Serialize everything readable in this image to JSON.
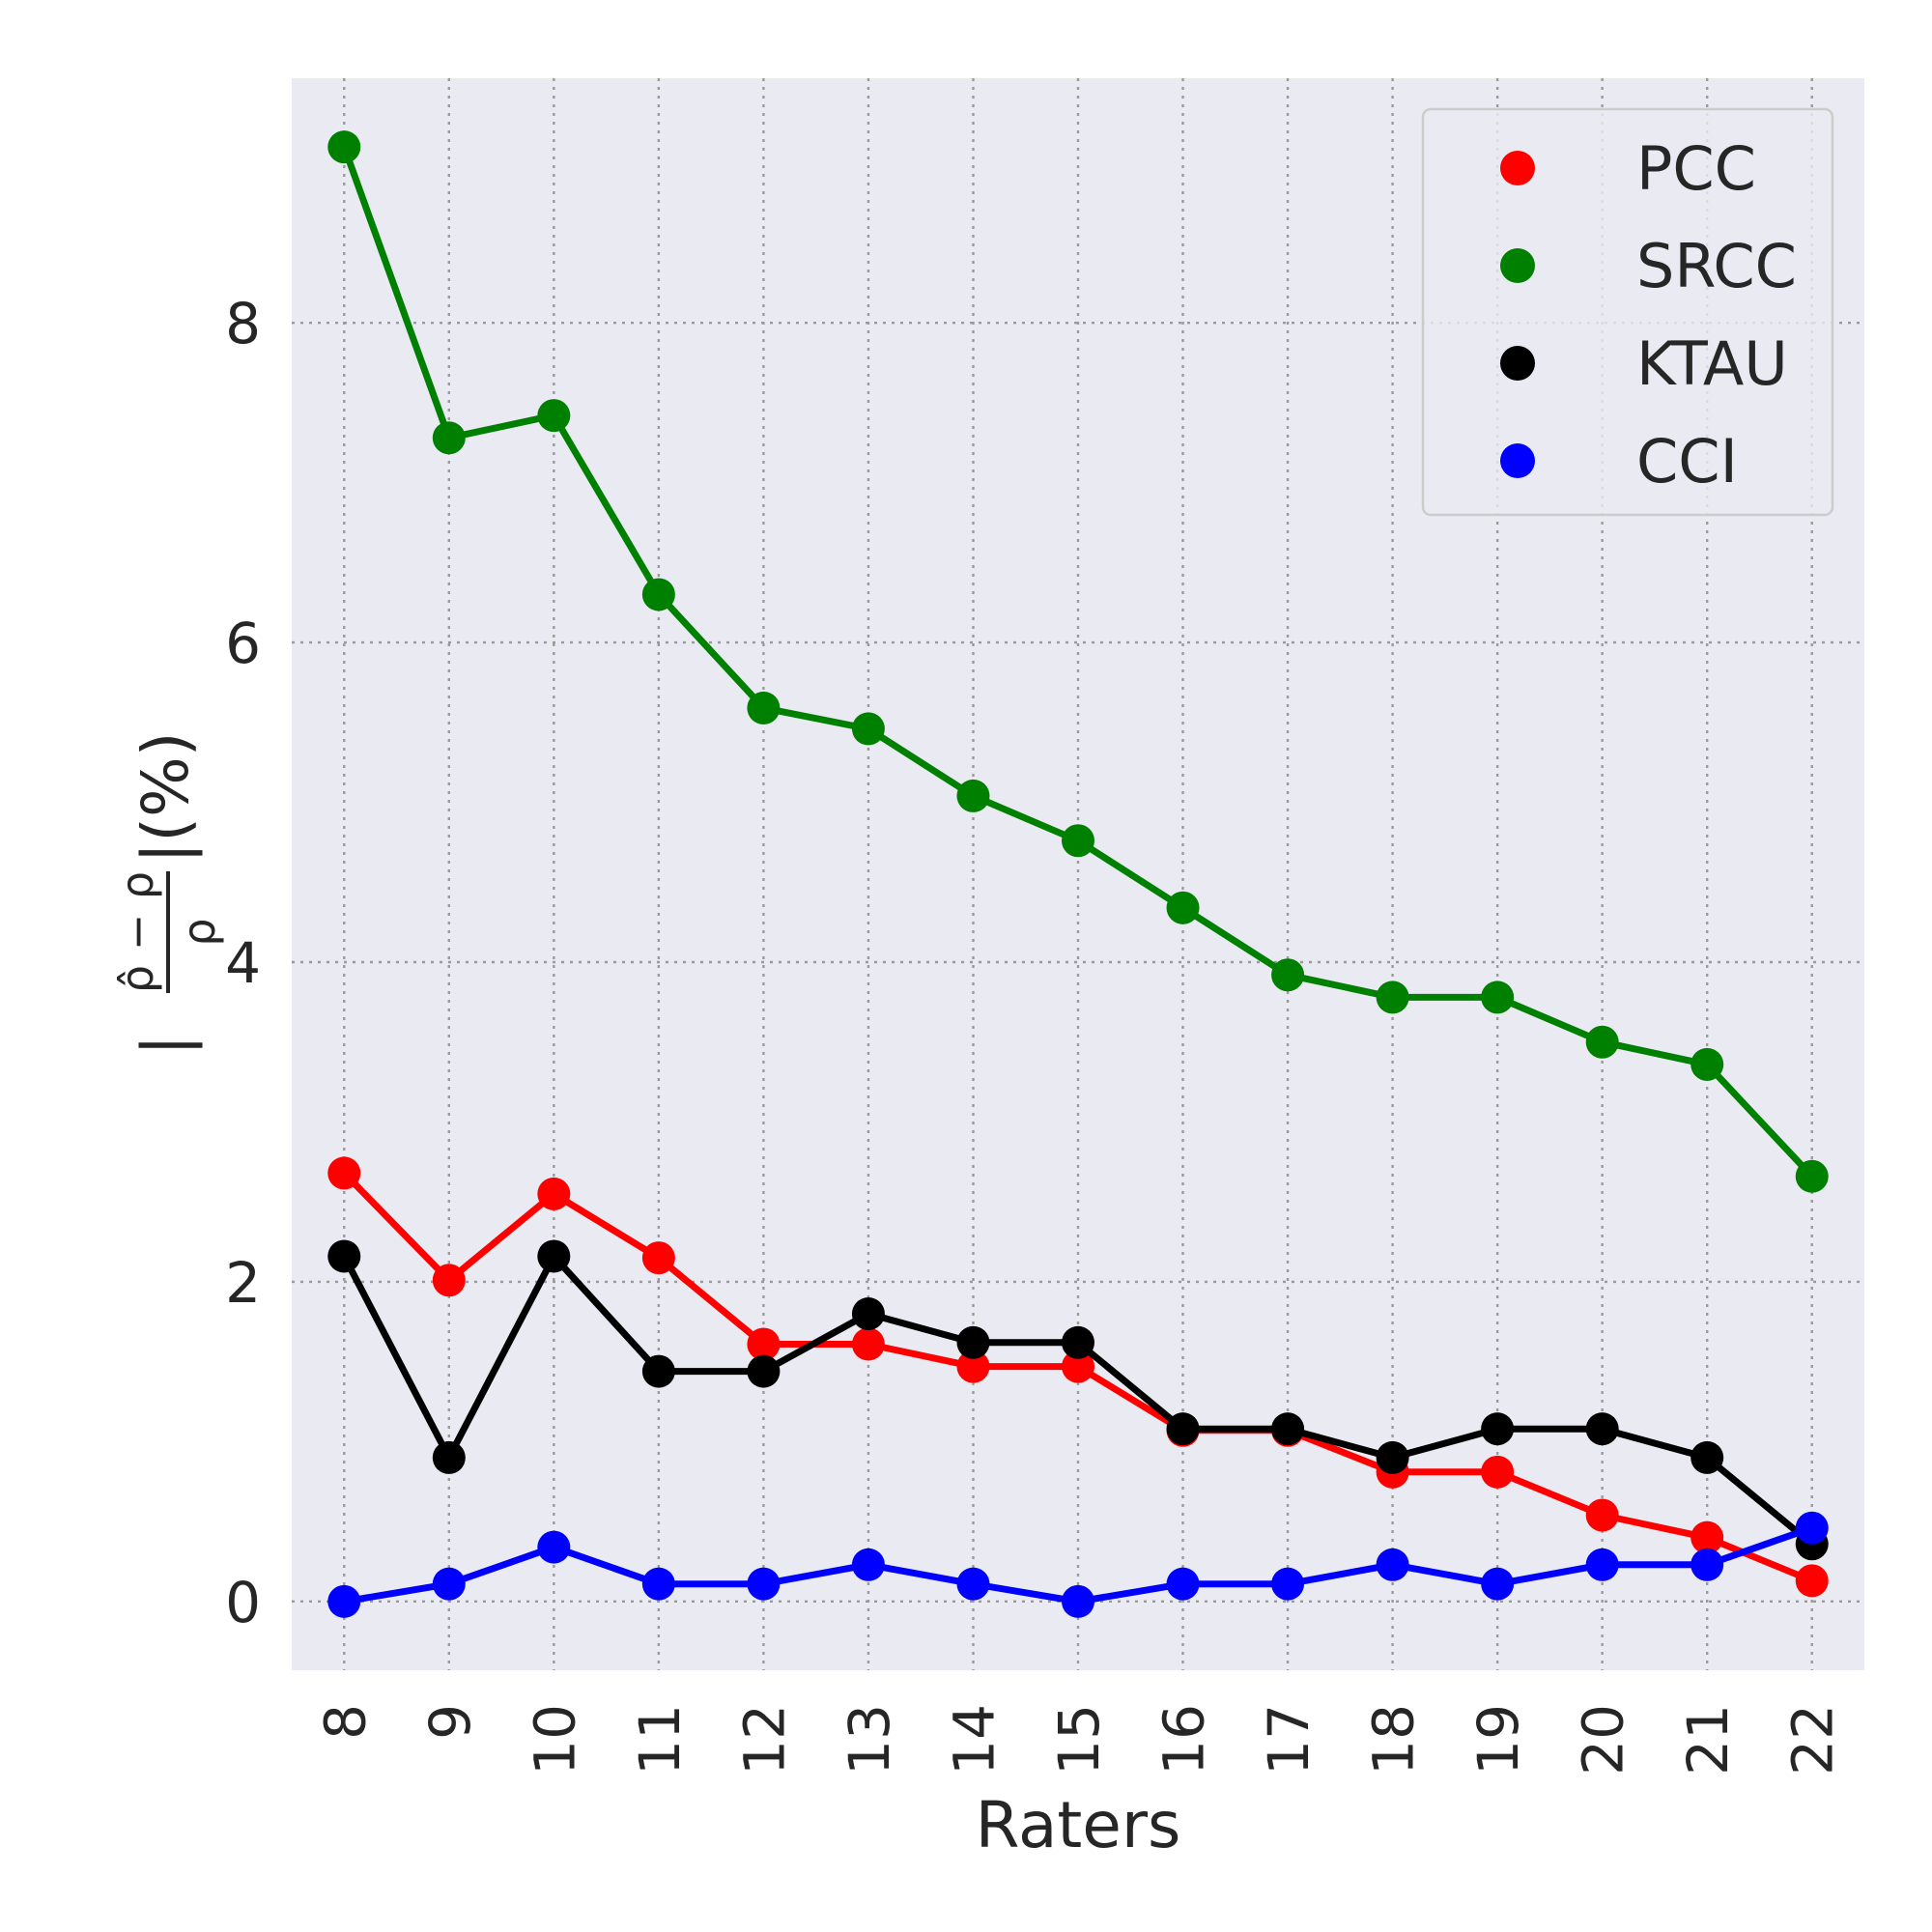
{
  "chart_data": {
    "type": "line",
    "xlabel": "Raters",
    "ylabel_parts": {
      "open": "|",
      "numerator": "ρ̂ − ρ",
      "denominator": "ρ",
      "close": "|(%)"
    },
    "x": [
      8,
      9,
      10,
      11,
      12,
      13,
      14,
      15,
      16,
      17,
      18,
      19,
      20,
      21,
      22
    ],
    "x_tick_labels": [
      "8",
      "9",
      "10",
      "11",
      "12",
      "13",
      "14",
      "15",
      "16",
      "17",
      "18",
      "19",
      "20",
      "21",
      "22"
    ],
    "y_tick_values": [
      0,
      2,
      4,
      6,
      8
    ],
    "y_tick_labels": [
      "0",
      "2",
      "4",
      "6",
      "8"
    ],
    "xlim": [
      7.5,
      22.5
    ],
    "ylim": [
      -0.43,
      9.53
    ],
    "grid": true,
    "legend_position": "top-right",
    "series": [
      {
        "name": "PCC",
        "color": "#ff0000",
        "values": [
          2.68,
          2.01,
          2.55,
          2.15,
          1.61,
          1.61,
          1.47,
          1.47,
          1.07,
          1.07,
          0.81,
          0.81,
          0.54,
          0.4,
          0.13
        ]
      },
      {
        "name": "SRCC",
        "color": "#008000",
        "values": [
          9.1,
          7.28,
          7.42,
          6.3,
          5.59,
          5.46,
          5.04,
          4.76,
          4.34,
          3.92,
          3.78,
          3.78,
          3.5,
          3.36,
          2.66
        ]
      },
      {
        "name": "KTAU",
        "color": "#000000",
        "values": [
          2.16,
          0.9,
          2.16,
          1.44,
          1.44,
          1.8,
          1.62,
          1.62,
          1.08,
          1.08,
          0.9,
          1.08,
          1.08,
          0.9,
          0.36
        ]
      },
      {
        "name": "CCI",
        "color": "#0000ff",
        "values": [
          0.0,
          0.11,
          0.34,
          0.11,
          0.11,
          0.23,
          0.11,
          0.0,
          0.11,
          0.11,
          0.23,
          0.11,
          0.23,
          0.23,
          0.46
        ]
      }
    ]
  }
}
